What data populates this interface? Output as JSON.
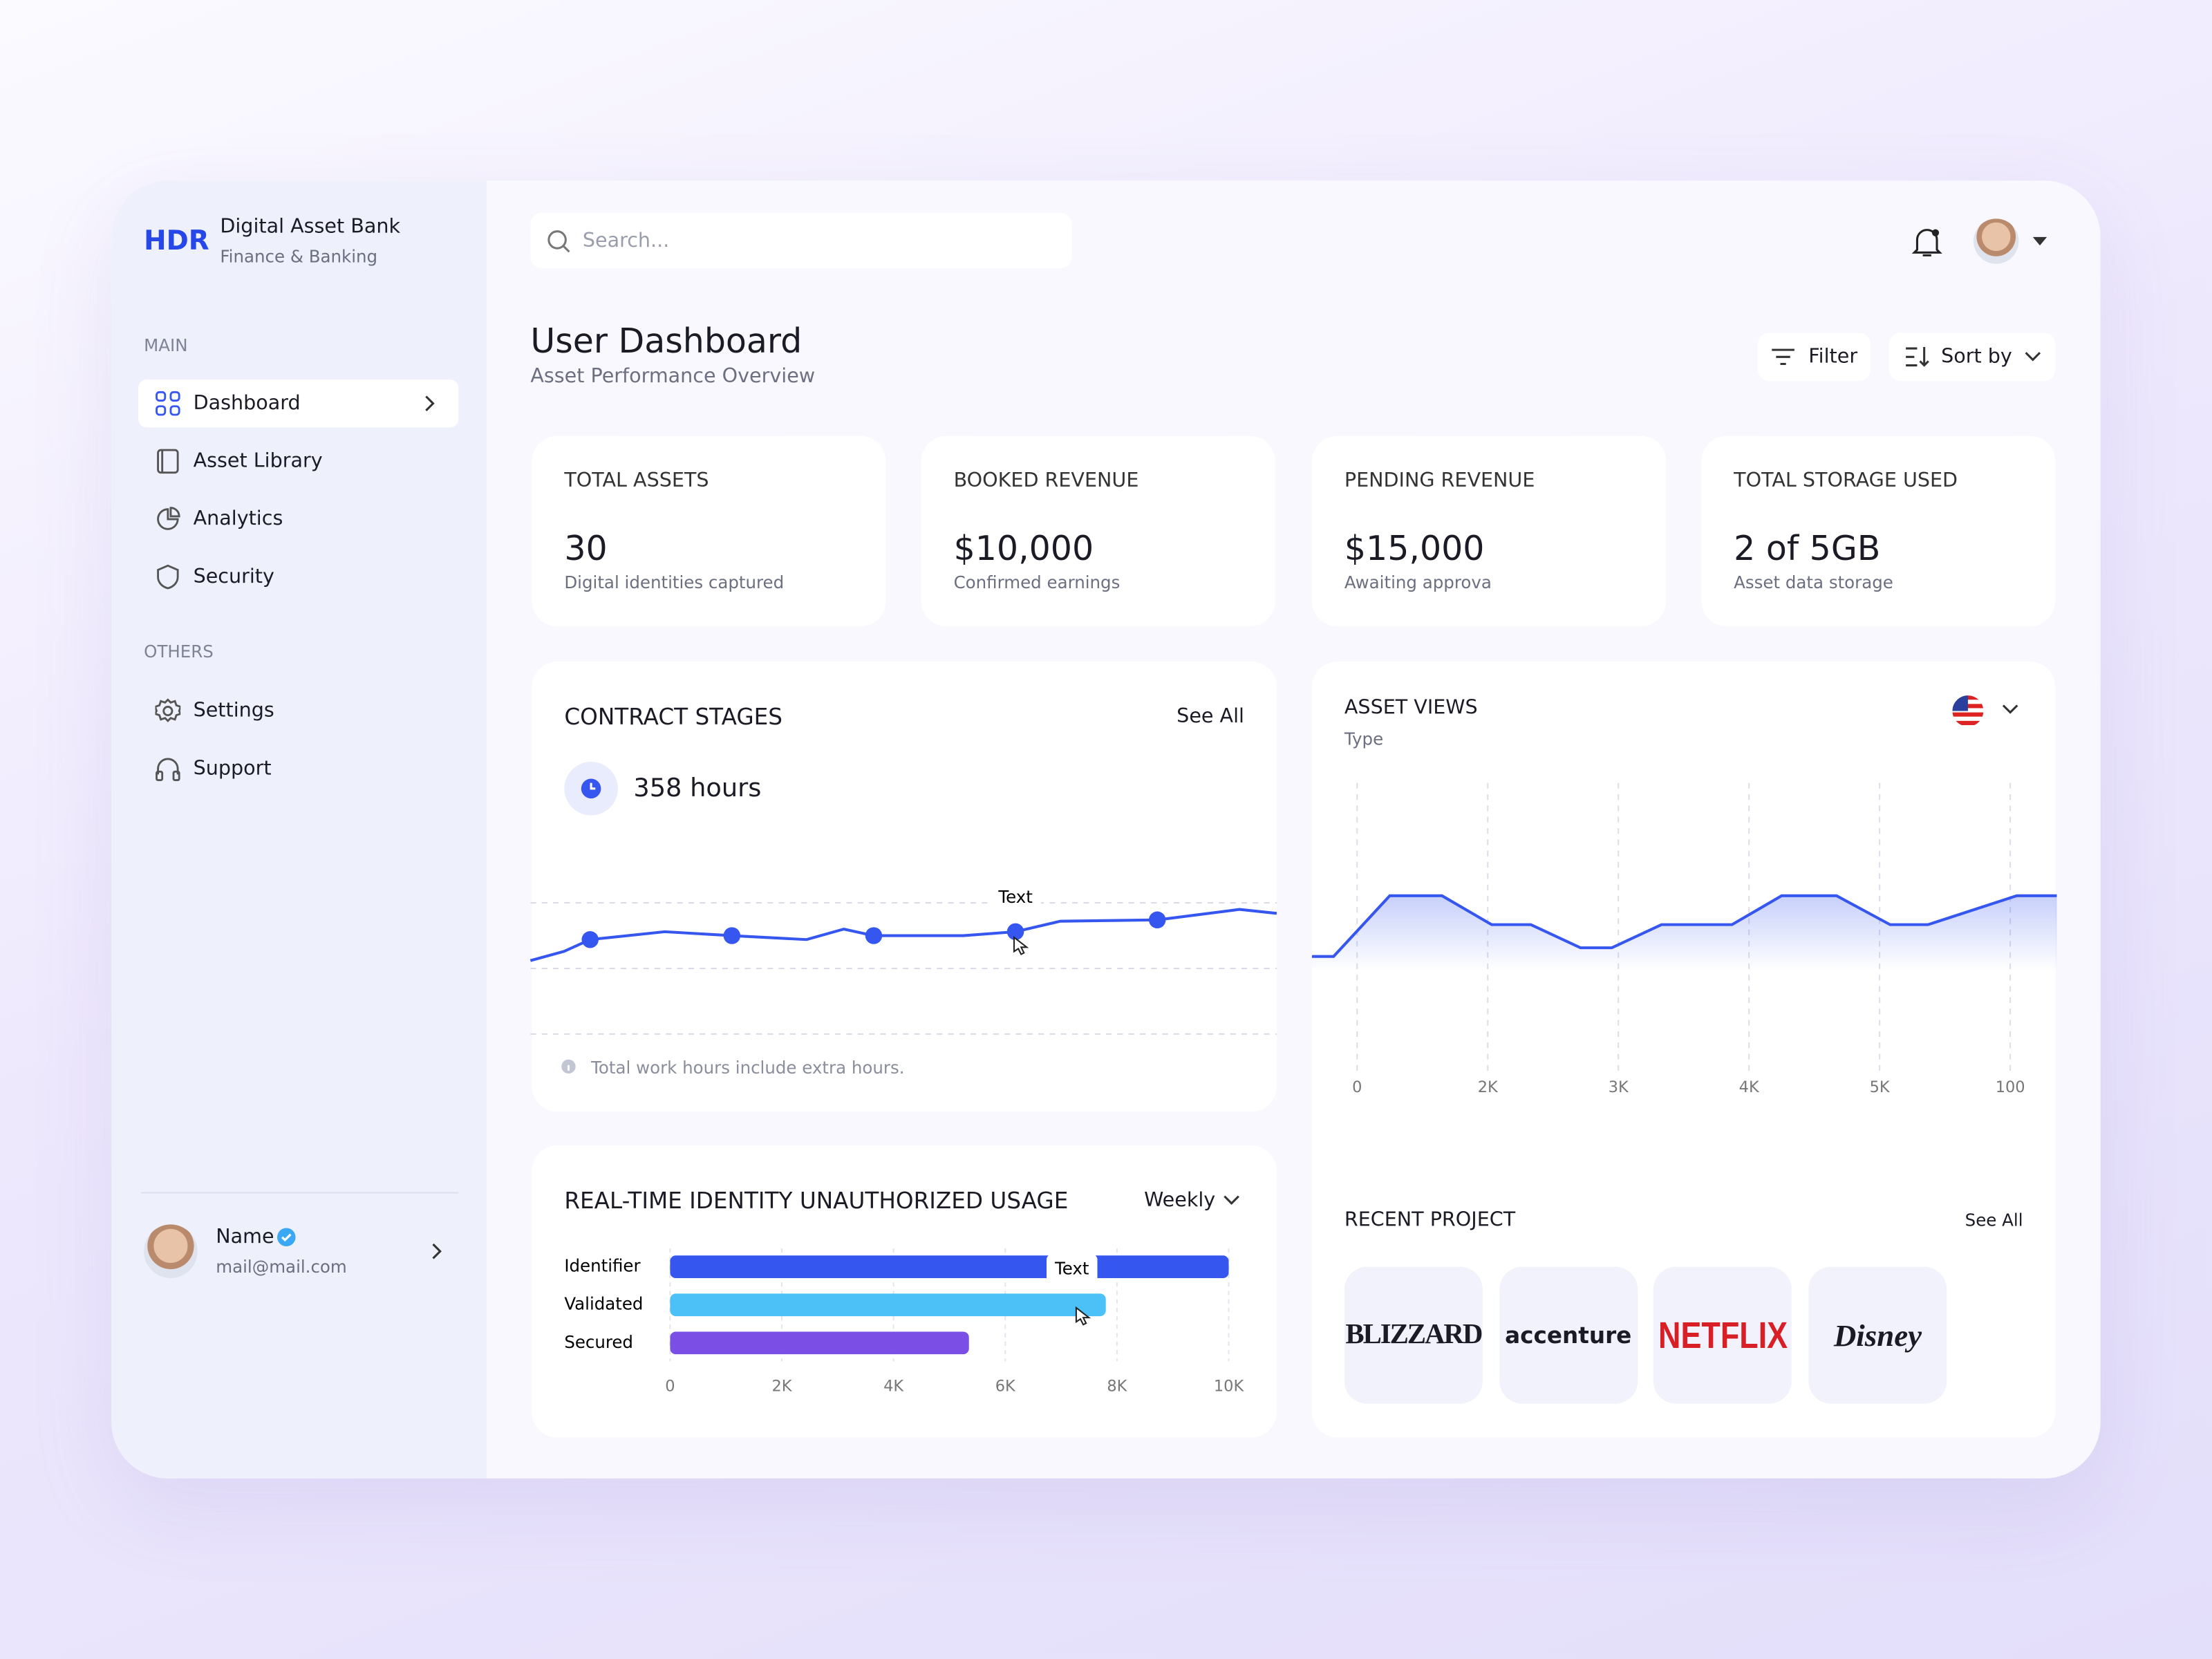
{
  "brand": {
    "logo": "HDR",
    "name": "Digital Asset Bank",
    "subtitle": "Finance & Banking"
  },
  "sidebar": {
    "sections": [
      {
        "title": "MAIN",
        "items": [
          "Dashboard",
          "Asset Library",
          "Analytics",
          "Security"
        ]
      },
      {
        "title": "OTHERS",
        "items": [
          "Settings",
          "Support"
        ]
      }
    ],
    "user": {
      "name": "Name",
      "email": "mail@mail.com"
    }
  },
  "search": {
    "placeholder": "Search..."
  },
  "header": {
    "title": "User Dashboard",
    "subtitle": "Asset Performance Overview",
    "filter": "Filter",
    "sort": "Sort by"
  },
  "stats": [
    {
      "label": "TOTAL ASSETS",
      "value": "30",
      "note": "Digital identities captured"
    },
    {
      "label": "BOOKED REVENUE",
      "value": "$10,000",
      "note": "Confirmed earnings"
    },
    {
      "label": "PENDING REVENUE",
      "value": "$15,000",
      "note": "Awaiting approva"
    },
    {
      "label": "TOTAL STORAGE USED",
      "value": "2 of 5GB",
      "note": "Asset data storage"
    }
  ],
  "contract_stages": {
    "title": "CONTRACT STAGES",
    "link": "See All",
    "hours": "358 hours",
    "tooltip": "Text",
    "footnote": "Total work hours include extra hours.",
    "chart": {
      "type": "line",
      "color": "#3656f0",
      "xlim": [
        0,
        100
      ],
      "ylim": [
        0,
        100
      ],
      "x": [
        0,
        4.5,
        8,
        18,
        27,
        37,
        42,
        46,
        58,
        65,
        71,
        84,
        95,
        100
      ],
      "values": [
        56,
        63,
        72,
        78,
        75,
        72,
        80,
        75,
        75,
        78,
        86,
        87,
        95,
        92
      ],
      "markers": {
        "x": [
          8,
          27,
          46,
          65,
          84
        ],
        "values": [
          72,
          75,
          75,
          78,
          87
        ]
      }
    }
  },
  "usage": {
    "title": "REAL-TIME IDENTITY UNAUTHORIZED USAGE",
    "period": "Weekly",
    "tooltip": "Text",
    "chart": {
      "type": "bar",
      "orientation": "horizontal",
      "categories": [
        "Identifier",
        "Validated",
        "Secured"
      ],
      "values": [
        10000,
        7800,
        5350
      ],
      "colors": [
        "#3656f0",
        "#4cc1f7",
        "#7b4fe6"
      ],
      "xlim": [
        0,
        10000
      ],
      "xticks": [
        0,
        {
          "value": 2000,
          "label": "2K"
        },
        {
          "value": 4000,
          "label": "4K"
        },
        {
          "value": 6000,
          "label": "6K"
        },
        {
          "value": 8000,
          "label": "8K"
        },
        {
          "value": 10000,
          "label": "10K"
        }
      ],
      "grid": true
    }
  },
  "asset_views": {
    "title": "ASSET VIEWS",
    "subtitle": "Type",
    "chart": {
      "type": "area",
      "color": "#3656f0",
      "categories": [
        "0",
        "2K",
        "3K",
        "4K",
        "5K",
        "100"
      ],
      "x": [
        -0.35,
        -0.18,
        0.25,
        0.65,
        1.03,
        1.33,
        1.71,
        1.95,
        2.33,
        2.87,
        3.25,
        3.67,
        4.08,
        4.37,
        5.05,
        5.36
      ],
      "values": [
        40,
        40,
        61,
        61,
        51,
        51,
        43,
        43,
        51,
        51,
        61,
        61,
        51,
        51,
        61,
        61
      ],
      "ylim": [
        0,
        100
      ],
      "grid": true
    }
  },
  "recent_project": {
    "title": "RECENT PROJECT",
    "link": "See All",
    "logos": [
      "BLIZZARD",
      "accenture",
      "NETFLIX",
      "Disney"
    ]
  }
}
